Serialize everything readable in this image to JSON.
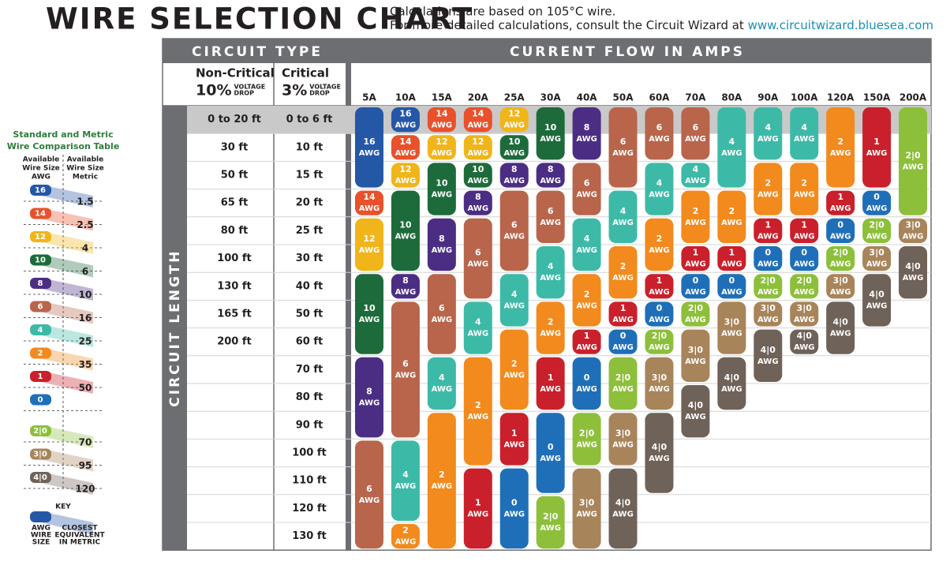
{
  "header": {
    "title": "WIRE SELECTION CHART",
    "line1": "Calculations are based on 105°C wire.",
    "line2": "For more detailed calculations, consult the Circuit Wizard at ",
    "link": "www.circuitwizard.bluesea.com"
  },
  "table": {
    "circuit_type": "CIRCUIT TYPE",
    "current_flow": "CURRENT FLOW IN AMPS",
    "circuit_length": "CIRCUIT LENGTH",
    "non_critical": {
      "name": "Non-Critical",
      "percent": "10%",
      "note": [
        "VOLTAGE",
        "DROP"
      ]
    },
    "critical": {
      "name": "Critical",
      "percent": "3%",
      "note": [
        "VOLTAGE",
        "DROP"
      ]
    },
    "non_critical_lengths": [
      "0 to 20 ft",
      "30 ft",
      "50 ft",
      "65 ft",
      "80 ft",
      "100 ft",
      "130 ft",
      "165 ft",
      "200 ft"
    ],
    "critical_lengths": [
      "0 to 6 ft",
      "10 ft",
      "15 ft",
      "20 ft",
      "25 ft",
      "30 ft",
      "40 ft",
      "50 ft",
      "60 ft",
      "70 ft",
      "80 ft",
      "90 ft",
      "100 ft",
      "110 ft",
      "120 ft",
      "130 ft"
    ],
    "unit": "AWG",
    "colors": {
      "16": "#2557a7",
      "14": "#e8512b",
      "12": "#f0b51a",
      "10": "#1d6b3b",
      "8": "#4b2e84",
      "6": "#b8654b",
      "4": "#3dbaa7",
      "2": "#f28a1d",
      "1": "#c9202b",
      "0": "#1f6fb8",
      "2|0": "#8dbf3b",
      "3|0": "#a8845b",
      "4|0": "#6f6259"
    },
    "columns": [
      {
        "amps": "5A",
        "wires": [
          {
            "awg": "16",
            "span": 3
          },
          {
            "awg": "14",
            "span": 1
          },
          {
            "awg": "12",
            "span": 2
          },
          {
            "awg": "10",
            "span": 3
          },
          {
            "awg": "8",
            "span": 3
          },
          {
            "awg": "6",
            "span": 4
          }
        ]
      },
      {
        "amps": "10A",
        "wires": [
          {
            "awg": "16",
            "span": 1
          },
          {
            "awg": "14",
            "span": 1
          },
          {
            "awg": "12",
            "span": 1
          },
          {
            "awg": "10",
            "span": 3
          },
          {
            "awg": "8",
            "span": 1
          },
          {
            "awg": "6",
            "span": 5
          },
          {
            "awg": "4",
            "span": 3
          },
          {
            "awg": "2",
            "span": 1
          }
        ]
      },
      {
        "amps": "15A",
        "wires": [
          {
            "awg": "14",
            "span": 1
          },
          {
            "awg": "12",
            "span": 1
          },
          {
            "awg": "10",
            "span": 2
          },
          {
            "awg": "8",
            "span": 2
          },
          {
            "awg": "6",
            "span": 3
          },
          {
            "awg": "4",
            "span": 2
          },
          {
            "awg": "2",
            "span": 5
          }
        ]
      },
      {
        "amps": "20A",
        "wires": [
          {
            "awg": "14",
            "span": 1
          },
          {
            "awg": "12",
            "span": 1
          },
          {
            "awg": "10",
            "span": 1
          },
          {
            "awg": "8",
            "span": 1
          },
          {
            "awg": "6",
            "span": 3
          },
          {
            "awg": "4",
            "span": 2
          },
          {
            "awg": "2",
            "span": 4
          },
          {
            "awg": "1",
            "span": 3
          }
        ]
      },
      {
        "amps": "25A",
        "wires": [
          {
            "awg": "12",
            "span": 1
          },
          {
            "awg": "10",
            "span": 1
          },
          {
            "awg": "8",
            "span": 1
          },
          {
            "awg": "6",
            "span": 3
          },
          {
            "awg": "4",
            "span": 2
          },
          {
            "awg": "2",
            "span": 3
          },
          {
            "awg": "1",
            "span": 2
          },
          {
            "awg": "0",
            "span": 3
          }
        ]
      },
      {
        "amps": "30A",
        "wires": [
          {
            "awg": "10",
            "span": 2
          },
          {
            "awg": "8",
            "span": 1
          },
          {
            "awg": "6",
            "span": 2
          },
          {
            "awg": "4",
            "span": 2
          },
          {
            "awg": "2",
            "span": 2
          },
          {
            "awg": "1",
            "span": 2
          },
          {
            "awg": "0",
            "span": 3
          },
          {
            "awg": "2|0",
            "span": 2
          }
        ]
      },
      {
        "amps": "40A",
        "wires": [
          {
            "awg": "8",
            "span": 2
          },
          {
            "awg": "6",
            "span": 2
          },
          {
            "awg": "4",
            "span": 2
          },
          {
            "awg": "2",
            "span": 2
          },
          {
            "awg": "1",
            "span": 1
          },
          {
            "awg": "0",
            "span": 2
          },
          {
            "awg": "2|0",
            "span": 2
          },
          {
            "awg": "3|0",
            "span": 3
          }
        ]
      },
      {
        "amps": "50A",
        "wires": [
          {
            "awg": "6",
            "span": 3
          },
          {
            "awg": "4",
            "span": 2
          },
          {
            "awg": "2",
            "span": 2
          },
          {
            "awg": "1",
            "span": 1
          },
          {
            "awg": "0",
            "span": 1
          },
          {
            "awg": "2|0",
            "span": 2
          },
          {
            "awg": "3|0",
            "span": 2
          },
          {
            "awg": "4|0",
            "span": 3
          }
        ]
      },
      {
        "amps": "60A",
        "wires": [
          {
            "awg": "6",
            "span": 2
          },
          {
            "awg": "4",
            "span": 2
          },
          {
            "awg": "2",
            "span": 2
          },
          {
            "awg": "1",
            "span": 1
          },
          {
            "awg": "0",
            "span": 1
          },
          {
            "awg": "2|0",
            "span": 1
          },
          {
            "awg": "3|0",
            "span": 2
          },
          {
            "awg": "4|0",
            "span": 3
          }
        ]
      },
      {
        "amps": "70A",
        "wires": [
          {
            "awg": "6",
            "span": 2
          },
          {
            "awg": "4",
            "span": 1
          },
          {
            "awg": "2",
            "span": 2
          },
          {
            "awg": "1",
            "span": 1
          },
          {
            "awg": "0",
            "span": 1
          },
          {
            "awg": "2|0",
            "span": 1
          },
          {
            "awg": "3|0",
            "span": 2
          },
          {
            "awg": "4|0",
            "span": 2
          }
        ]
      },
      {
        "amps": "80A",
        "wires": [
          {
            "awg": "4",
            "span": 3
          },
          {
            "awg": "2",
            "span": 2
          },
          {
            "awg": "1",
            "span": 1
          },
          {
            "awg": "0",
            "span": 1
          },
          {
            "awg": "3|0",
            "span": 2
          },
          {
            "awg": "4|0",
            "span": 2
          }
        ]
      },
      {
        "amps": "90A",
        "wires": [
          {
            "awg": "4",
            "span": 2
          },
          {
            "awg": "2",
            "span": 2
          },
          {
            "awg": "1",
            "span": 1
          },
          {
            "awg": "0",
            "span": 1
          },
          {
            "awg": "2|0",
            "span": 1
          },
          {
            "awg": "3|0",
            "span": 1
          },
          {
            "awg": "4|0",
            "span": 2
          }
        ]
      },
      {
        "amps": "100A",
        "wires": [
          {
            "awg": "4",
            "span": 2
          },
          {
            "awg": "2",
            "span": 2
          },
          {
            "awg": "1",
            "span": 1
          },
          {
            "awg": "0",
            "span": 1
          },
          {
            "awg": "2|0",
            "span": 1
          },
          {
            "awg": "3|0",
            "span": 1
          },
          {
            "awg": "4|0",
            "span": 1
          }
        ]
      },
      {
        "amps": "120A",
        "wires": [
          {
            "awg": "2",
            "span": 3
          },
          {
            "awg": "1",
            "span": 1
          },
          {
            "awg": "0",
            "span": 1
          },
          {
            "awg": "2|0",
            "span": 1
          },
          {
            "awg": "3|0",
            "span": 1
          },
          {
            "awg": "4|0",
            "span": 2
          }
        ]
      },
      {
        "amps": "150A",
        "wires": [
          {
            "awg": "1",
            "span": 3
          },
          {
            "awg": "0",
            "span": 1
          },
          {
            "awg": "2|0",
            "span": 1
          },
          {
            "awg": "3|0",
            "span": 1
          },
          {
            "awg": "4|0",
            "span": 2
          }
        ]
      },
      {
        "amps": "200A",
        "wires": [
          {
            "awg": "2|0",
            "span": 4
          },
          {
            "awg": "3|0",
            "span": 1
          },
          {
            "awg": "4|0",
            "span": 2
          }
        ]
      }
    ]
  },
  "legend": {
    "title": [
      "Standard and Metric",
      "Wire Comparison Table"
    ],
    "awg_header": [
      "Available",
      "Wire Size",
      "AWG"
    ],
    "metric_header": [
      "Available",
      "Wire Size",
      "Metric"
    ],
    "rows": [
      {
        "awg": "16",
        "metric": "1.5"
      },
      {
        "awg": "14",
        "metric": "2.5"
      },
      {
        "awg": "12",
        "metric": "4"
      },
      {
        "awg": "10",
        "metric": "6"
      },
      {
        "awg": "8",
        "metric": "10"
      },
      {
        "awg": "6",
        "metric": "16"
      },
      {
        "awg": "4",
        "metric": "25"
      },
      {
        "awg": "2",
        "metric": "35"
      },
      {
        "awg": "1",
        "metric": "50"
      },
      {
        "awg": "0"
      },
      {
        "awg": "2|0",
        "metric": "70"
      },
      {
        "awg": "3|0",
        "metric": "95"
      },
      {
        "awg": "4|0",
        "metric": "120"
      }
    ],
    "key": {
      "title": "KEY",
      "awg": [
        "AWG",
        "WIRE",
        "SIZE"
      ],
      "metric": [
        "CLOSEST",
        "EQUIVALENT",
        "IN METRIC"
      ]
    }
  }
}
